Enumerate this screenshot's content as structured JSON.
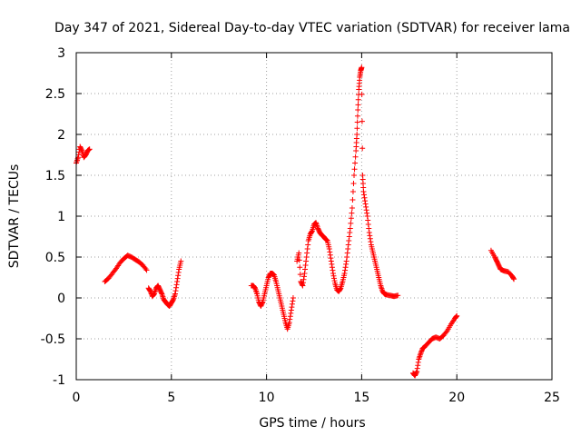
{
  "chart_data": {
    "type": "scatter",
    "title": "Day 347 of 2021, Sidereal Day-to-day VTEC variation (SDTVAR) for receiver lama",
    "xlabel": "GPS time / hours",
    "ylabel": "SDTVAR / TECUs",
    "xlim": [
      0,
      25
    ],
    "ylim": [
      -1,
      3
    ],
    "xticks": [
      0,
      5,
      10,
      15,
      20,
      25
    ],
    "yticks": [
      -1,
      -0.5,
      0,
      0.5,
      1,
      1.5,
      2,
      2.5,
      3
    ],
    "ytick_labels": [
      "-1",
      "-0.5",
      "0",
      "0.5",
      "1",
      "1.5",
      "2",
      "2.5",
      "3"
    ],
    "grid": true,
    "marker": "+",
    "color": "#ff0000",
    "series": [
      {
        "name": "lama",
        "segments": [
          [
            [
              0.0,
              1.65
            ],
            [
              0.1,
              1.72
            ],
            [
              0.2,
              1.85
            ],
            [
              0.3,
              1.8
            ],
            [
              0.4,
              1.72
            ],
            [
              0.5,
              1.75
            ],
            [
              0.6,
              1.8
            ],
            [
              0.7,
              1.82
            ]
          ],
          [
            [
              1.5,
              0.2
            ],
            [
              1.7,
              0.24
            ],
            [
              1.9,
              0.3
            ],
            [
              2.1,
              0.36
            ],
            [
              2.3,
              0.43
            ],
            [
              2.5,
              0.48
            ],
            [
              2.7,
              0.52
            ],
            [
              2.9,
              0.5
            ],
            [
              3.1,
              0.47
            ],
            [
              3.3,
              0.44
            ],
            [
              3.5,
              0.4
            ],
            [
              3.7,
              0.34
            ]
          ],
          [
            [
              3.8,
              0.12
            ],
            [
              3.9,
              0.08
            ],
            [
              4.0,
              0.02
            ],
            [
              4.1,
              0.05
            ],
            [
              4.2,
              0.12
            ],
            [
              4.3,
              0.15
            ],
            [
              4.4,
              0.1
            ],
            [
              4.5,
              0.05
            ],
            [
              4.6,
              -0.02
            ],
            [
              4.7,
              -0.05
            ],
            [
              4.8,
              -0.08
            ],
            [
              4.9,
              -0.1
            ],
            [
              5.0,
              -0.06
            ],
            [
              5.1,
              -0.02
            ],
            [
              5.2,
              0.05
            ],
            [
              5.3,
              0.2
            ],
            [
              5.4,
              0.35
            ],
            [
              5.5,
              0.45
            ]
          ],
          [
            [
              9.2,
              0.15
            ],
            [
              9.3,
              0.15
            ],
            [
              9.4,
              0.12
            ],
            [
              9.5,
              0.05
            ],
            [
              9.6,
              -0.05
            ],
            [
              9.7,
              -0.1
            ],
            [
              9.8,
              -0.05
            ],
            [
              9.9,
              0.05
            ],
            [
              10.0,
              0.15
            ],
            [
              10.1,
              0.25
            ],
            [
              10.2,
              0.3
            ],
            [
              10.3,
              0.3
            ],
            [
              10.4,
              0.28
            ],
            [
              10.5,
              0.2
            ],
            [
              10.6,
              0.1
            ],
            [
              10.7,
              0.0
            ],
            [
              10.8,
              -0.1
            ],
            [
              10.9,
              -0.2
            ],
            [
              11.0,
              -0.3
            ],
            [
              11.1,
              -0.38
            ],
            [
              11.2,
              -0.3
            ],
            [
              11.3,
              -0.15
            ],
            [
              11.4,
              0.0
            ]
          ],
          [
            [
              11.6,
              0.45
            ],
            [
              11.7,
              0.55
            ],
            [
              11.8,
              0.2
            ],
            [
              11.9,
              0.15
            ],
            [
              12.0,
              0.3
            ],
            [
              12.1,
              0.5
            ],
            [
              12.2,
              0.7
            ],
            [
              12.3,
              0.78
            ],
            [
              12.4,
              0.82
            ],
            [
              12.5,
              0.9
            ],
            [
              12.6,
              0.92
            ],
            [
              12.7,
              0.85
            ],
            [
              12.8,
              0.8
            ],
            [
              12.9,
              0.77
            ],
            [
              13.0,
              0.75
            ],
            [
              13.1,
              0.72
            ],
            [
              13.2,
              0.7
            ],
            [
              13.3,
              0.6
            ],
            [
              13.4,
              0.45
            ],
            [
              13.5,
              0.3
            ],
            [
              13.6,
              0.18
            ],
            [
              13.7,
              0.1
            ],
            [
              13.8,
              0.08
            ],
            [
              13.9,
              0.12
            ],
            [
              14.0,
              0.2
            ],
            [
              14.1,
              0.3
            ],
            [
              14.2,
              0.45
            ],
            [
              14.3,
              0.65
            ],
            [
              14.4,
              0.85
            ],
            [
              14.5,
              1.1
            ],
            [
              14.6,
              1.5
            ],
            [
              14.7,
              1.8
            ],
            [
              14.75,
              2.0
            ],
            [
              14.8,
              2.3
            ],
            [
              14.85,
              2.55
            ],
            [
              14.9,
              2.7
            ],
            [
              14.95,
              2.78
            ],
            [
              15.0,
              2.82
            ],
            [
              15.05,
              1.5
            ],
            [
              15.1,
              1.3
            ],
            [
              15.2,
              1.15
            ],
            [
              15.3,
              1.0
            ],
            [
              15.4,
              0.8
            ],
            [
              15.5,
              0.65
            ],
            [
              15.6,
              0.55
            ],
            [
              15.7,
              0.45
            ],
            [
              15.8,
              0.35
            ],
            [
              15.9,
              0.25
            ],
            [
              16.0,
              0.15
            ],
            [
              16.1,
              0.08
            ],
            [
              16.2,
              0.05
            ],
            [
              16.3,
              0.04
            ],
            [
              16.5,
              0.03
            ],
            [
              16.7,
              0.02
            ],
            [
              16.9,
              0.03
            ]
          ],
          [
            [
              17.7,
              -0.92
            ],
            [
              17.8,
              -0.95
            ],
            [
              17.9,
              -0.9
            ],
            [
              18.0,
              -0.75
            ],
            [
              18.1,
              -0.68
            ],
            [
              18.2,
              -0.62
            ],
            [
              18.3,
              -0.6
            ],
            [
              18.5,
              -0.55
            ],
            [
              18.7,
              -0.5
            ],
            [
              18.9,
              -0.48
            ],
            [
              19.1,
              -0.5
            ],
            [
              19.3,
              -0.46
            ],
            [
              19.5,
              -0.4
            ],
            [
              19.7,
              -0.32
            ],
            [
              19.9,
              -0.25
            ],
            [
              20.0,
              -0.22
            ]
          ],
          [
            [
              21.8,
              0.58
            ],
            [
              22.0,
              0.5
            ],
            [
              22.1,
              0.45
            ],
            [
              22.2,
              0.4
            ],
            [
              22.3,
              0.35
            ],
            [
              22.5,
              0.33
            ],
            [
              22.7,
              0.32
            ],
            [
              22.9,
              0.27
            ],
            [
              23.0,
              0.23
            ]
          ]
        ]
      }
    ]
  }
}
